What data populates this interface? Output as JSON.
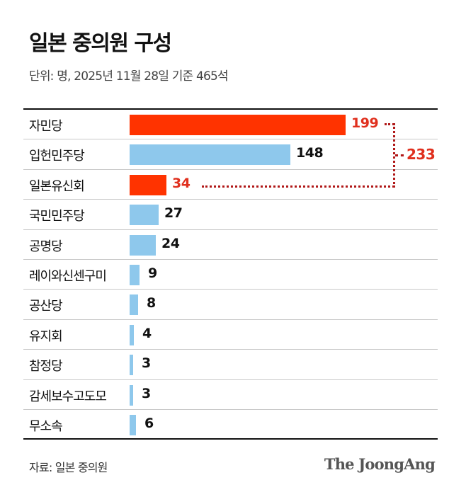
{
  "header": {
    "title": "일본 중의원 구성",
    "subtitle": "단위: 명, 2025년 11월 28일 기준 465석"
  },
  "footer": {
    "source": "자료: 일본 중의원",
    "logo": "The JoongAng"
  },
  "annotation": {
    "coalition_total": "233",
    "coalition_members": [
      "자민당",
      "일본유신회"
    ]
  },
  "colors": {
    "highlight": "#ff3300",
    "highlight_text": "#e0301e",
    "default_bar": "#8ec8ec",
    "default_text": "#111111",
    "dots": "#b01818"
  },
  "rows": [
    {
      "label": "자민당",
      "value": "199"
    },
    {
      "label": "입헌민주당",
      "value": "148"
    },
    {
      "label": "일본유신회",
      "value": "34"
    },
    {
      "label": "국민민주당",
      "value": "27"
    },
    {
      "label": "공명당",
      "value": "24"
    },
    {
      "label": "레이와신센구미",
      "value": "9"
    },
    {
      "label": "공산당",
      "value": "8"
    },
    {
      "label": "유지회",
      "value": "4"
    },
    {
      "label": "참정당",
      "value": "3"
    },
    {
      "label": "감세보수고도모",
      "value": "3"
    },
    {
      "label": "무소속",
      "value": "6"
    }
  ],
  "chart_data": {
    "type": "bar",
    "orientation": "horizontal",
    "title": "일본 중의원 구성",
    "subtitle": "단위: 명, 2025년 11월 28일 기준 465석",
    "categories": [
      "자민당",
      "입헌민주당",
      "일본유신회",
      "국민민주당",
      "공명당",
      "레이와신센구미",
      "공산당",
      "유지회",
      "참정당",
      "감세보수고도모",
      "무소속"
    ],
    "values": [
      199,
      148,
      34,
      27,
      24,
      9,
      8,
      4,
      3,
      3,
      6
    ],
    "highlighted": [
      "자민당",
      "일본유신회"
    ],
    "annotations": [
      {
        "text": "233",
        "note": "자민당 199 + 일본유신회 34"
      }
    ],
    "xlabel": "",
    "ylabel": "",
    "source": "자료: 일본 중의원",
    "grid": false,
    "legend": null
  }
}
